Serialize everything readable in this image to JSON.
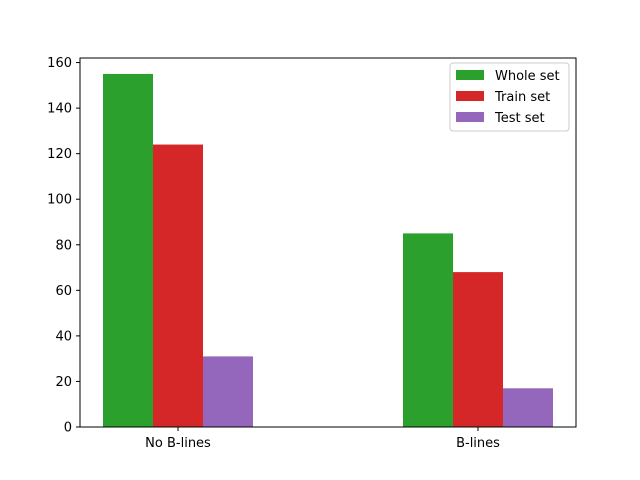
{
  "chart_data": {
    "type": "bar",
    "title": "",
    "xlabel": "",
    "ylabel": "",
    "categories": [
      "No B-lines",
      "B-lines"
    ],
    "series": [
      {
        "name": "Whole set",
        "values": [
          155,
          85
        ],
        "color": "#2ca02c"
      },
      {
        "name": "Train set",
        "values": [
          124,
          68
        ],
        "color": "#d62728"
      },
      {
        "name": "Test set",
        "values": [
          31,
          17
        ],
        "color": "#9467bd"
      }
    ],
    "ylim": [
      0,
      162
    ],
    "yticks": [
      0,
      20,
      40,
      60,
      80,
      100,
      120,
      140,
      160
    ],
    "grid": false,
    "legend_position": "top-right"
  }
}
